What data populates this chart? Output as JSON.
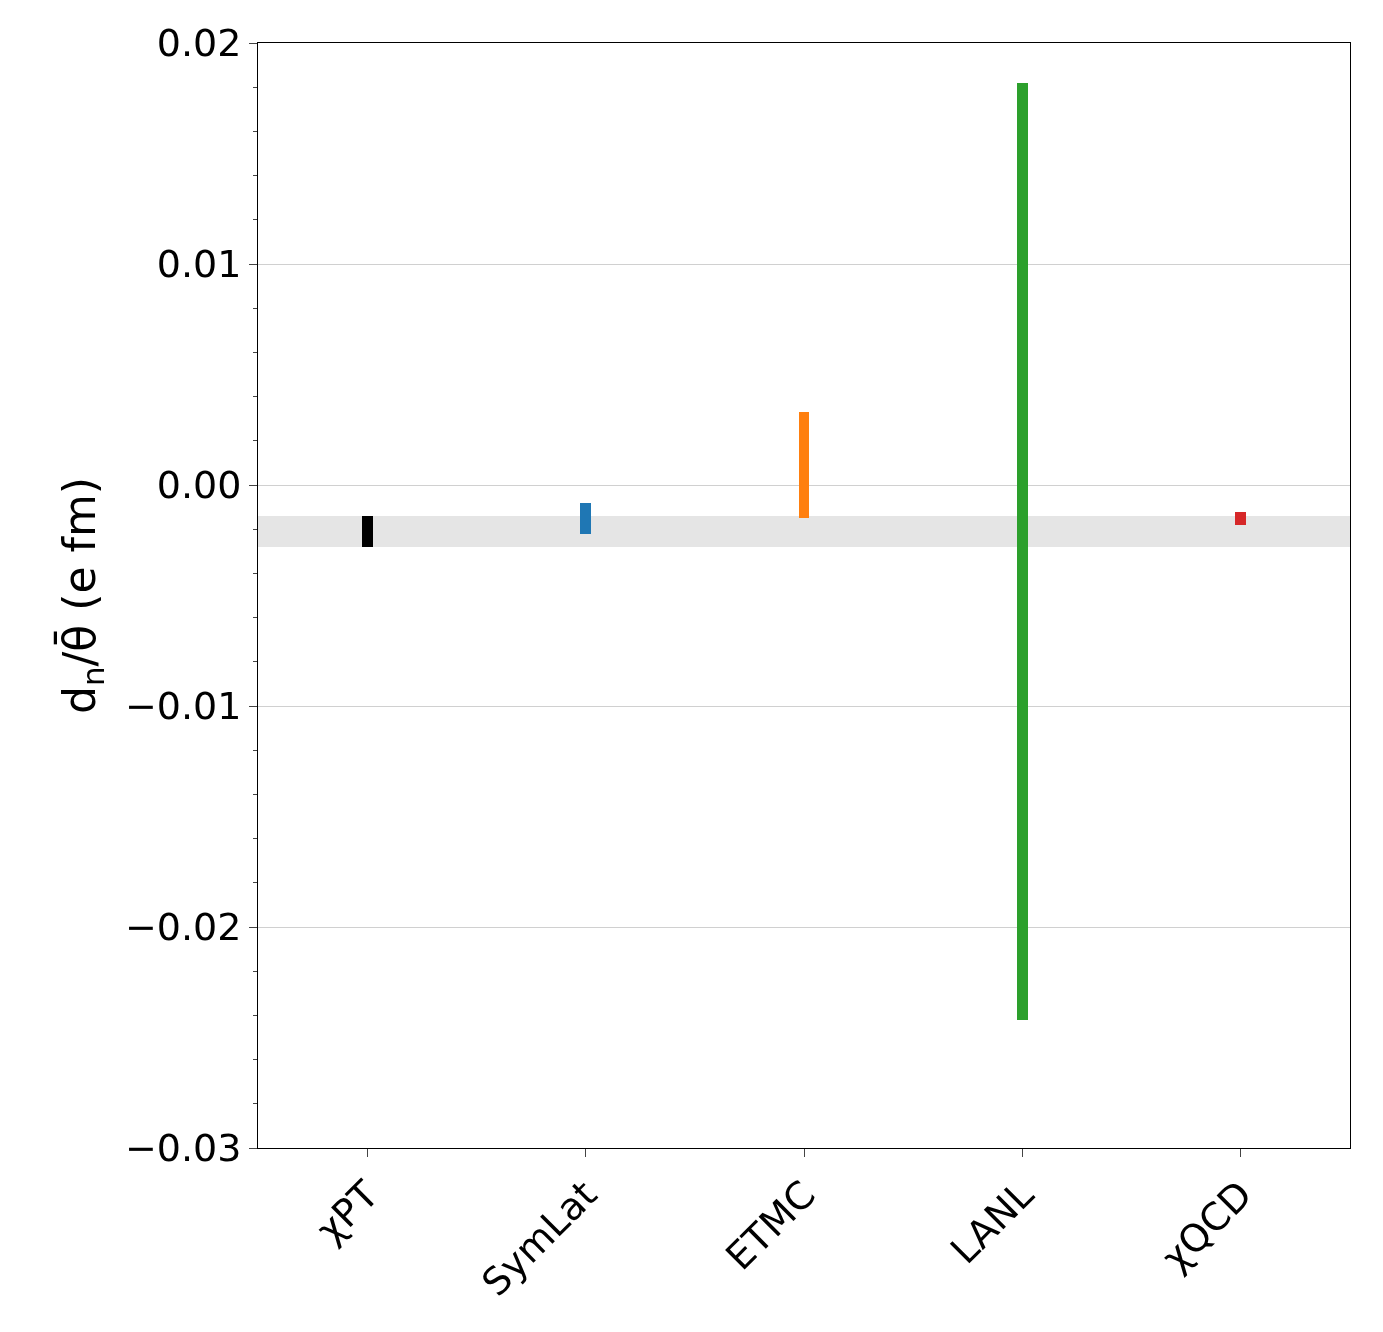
{
  "chart_data": {
    "type": "bar",
    "ylabel": "d$_{n}$/θ̄ (e fm)",
    "categories": [
      "χPT",
      "SymLat",
      "ETMC",
      "LANL",
      "χQCD"
    ],
    "base": [
      -0.0028,
      -0.0022,
      -0.0015,
      -0.0242,
      -0.0018
    ],
    "values": [
      0.0014,
      0.0014,
      0.0048,
      0.0424,
      0.0006
    ],
    "colors": [
      "#000000",
      "#1f77b4",
      "#ff7f0e",
      "#2ca02c",
      "#d62728"
    ],
    "ylim": [
      -0.03,
      0.02
    ],
    "yticks": [
      {
        "value": -0.03,
        "label": "−0.03"
      },
      {
        "value": -0.02,
        "label": "−0.02"
      },
      {
        "value": -0.01,
        "label": "−0.01"
      },
      {
        "value": 0,
        "label": "0.00"
      },
      {
        "value": 0.01,
        "label": "0.01"
      },
      {
        "value": 0.02,
        "label": "0.02"
      }
    ],
    "bands": [
      {
        "axis": "y",
        "from": -0.0028,
        "to": -0.0014,
        "color": "#e5e5e5"
      }
    ],
    "grid": "y"
  }
}
